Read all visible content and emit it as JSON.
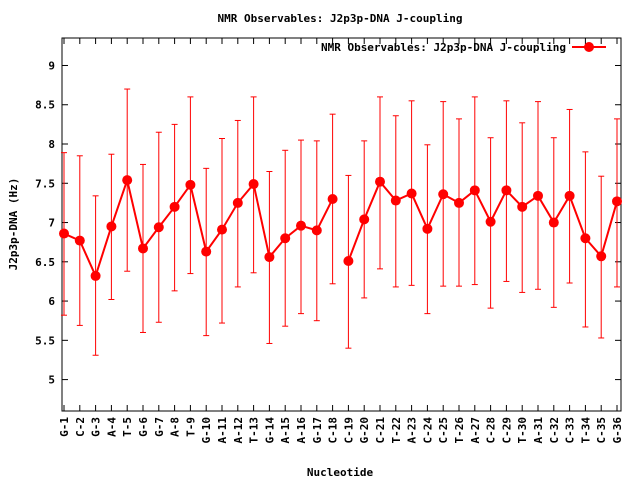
{
  "chart_data": {
    "type": "line",
    "title": "NMR Observables: J2p3p-DNA J-coupling",
    "xlabel": "Nucleotide",
    "ylabel": "J2p3p-DNA (Hz)",
    "ylim": [
      4.6,
      9.35
    ],
    "yticks": [
      5,
      5.5,
      6,
      6.5,
      7,
      7.5,
      8,
      8.5,
      9
    ],
    "ytick_labels": [
      "5",
      "5.5",
      "6",
      "6.5",
      "7",
      "7.5",
      "8",
      "8.5",
      "9"
    ],
    "grid": false,
    "legend_position": "top-right",
    "series": [
      {
        "name": "NMR Observables: J2p3p-DNA J-coupling",
        "color": "#ff0000",
        "marker": "circle",
        "error_bars": true,
        "categories": [
          "G-1",
          "C-2",
          "G-3",
          "A-4",
          "T-5",
          "G-6",
          "G-7",
          "A-8",
          "T-9",
          "G-10",
          "A-11",
          "A-12",
          "T-13",
          "G-14",
          "A-15",
          "A-16",
          "G-17",
          "C-18",
          "C-19",
          "G-20",
          "C-21",
          "T-22",
          "A-23",
          "C-24",
          "C-25",
          "T-26",
          "A-27",
          "C-28",
          "C-29",
          "T-30",
          "A-31",
          "C-32",
          "C-33",
          "T-34",
          "C-35",
          "G-36"
        ],
        "values": [
          6.86,
          6.77,
          6.32,
          6.95,
          7.54,
          6.67,
          6.94,
          7.2,
          7.48,
          6.63,
          6.91,
          7.25,
          7.49,
          6.56,
          6.8,
          6.96,
          6.9,
          7.3,
          6.51,
          7.04,
          7.52,
          7.28,
          7.37,
          6.92,
          7.36,
          7.25,
          7.41,
          7.01,
          7.41,
          7.2,
          7.34,
          7.0,
          7.34,
          6.8,
          6.57,
          7.27
        ],
        "err_low": [
          5.82,
          5.69,
          5.31,
          6.02,
          6.38,
          5.6,
          5.73,
          6.13,
          6.35,
          5.56,
          5.72,
          6.18,
          6.36,
          5.46,
          5.68,
          5.84,
          5.75,
          6.22,
          5.4,
          6.04,
          6.41,
          6.18,
          6.2,
          5.84,
          6.19,
          6.19,
          6.21,
          5.91,
          6.25,
          6.11,
          6.15,
          5.92,
          6.23,
          5.67,
          5.53,
          6.18
        ],
        "err_high": [
          7.89,
          7.85,
          7.34,
          7.87,
          8.7,
          7.74,
          8.15,
          8.25,
          8.6,
          7.69,
          8.07,
          8.3,
          8.6,
          7.65,
          7.92,
          8.05,
          8.04,
          8.38,
          7.6,
          8.04,
          8.6,
          8.36,
          8.55,
          7.99,
          8.54,
          8.32,
          8.6,
          8.08,
          8.55,
          8.27,
          8.54,
          8.08,
          8.44,
          7.9,
          7.59,
          8.32
        ],
        "segments": [
          [
            0,
            17
          ],
          [
            18,
            35
          ]
        ]
      }
    ]
  }
}
